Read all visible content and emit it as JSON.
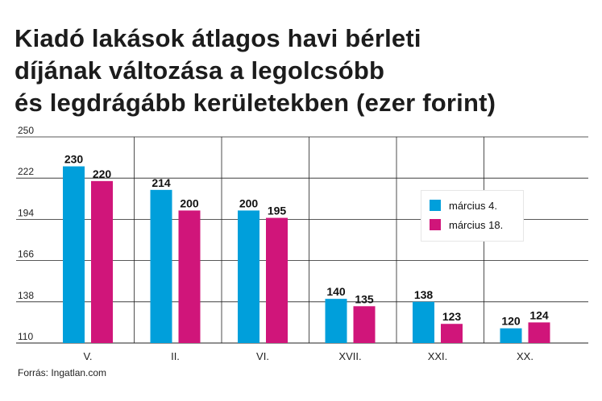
{
  "title_lines": [
    "Kiadó lakások átlagos havi bérleti",
    "díjának változása a legolcsóbb",
    "és legdrágább kerületekben (ezer forint)"
  ],
  "source": "Forrás: Ingatlan.com",
  "colors": {
    "series1": "#009fdb",
    "series2": "#d0157a",
    "grid": "#222222"
  },
  "chart_data": {
    "type": "bar",
    "categories": [
      "V.",
      "II.",
      "VI.",
      "XVII.",
      "XXI.",
      "XX."
    ],
    "series": [
      {
        "name": "március 4.",
        "values": [
          230,
          214,
          200,
          140,
          138,
          120
        ]
      },
      {
        "name": "március 18.",
        "values": [
          220,
          200,
          195,
          135,
          123,
          124
        ]
      }
    ],
    "ylim": [
      110,
      250
    ],
    "yticks": [
      110,
      138,
      166,
      194,
      222,
      250
    ],
    "grid": true,
    "legend": "right"
  }
}
